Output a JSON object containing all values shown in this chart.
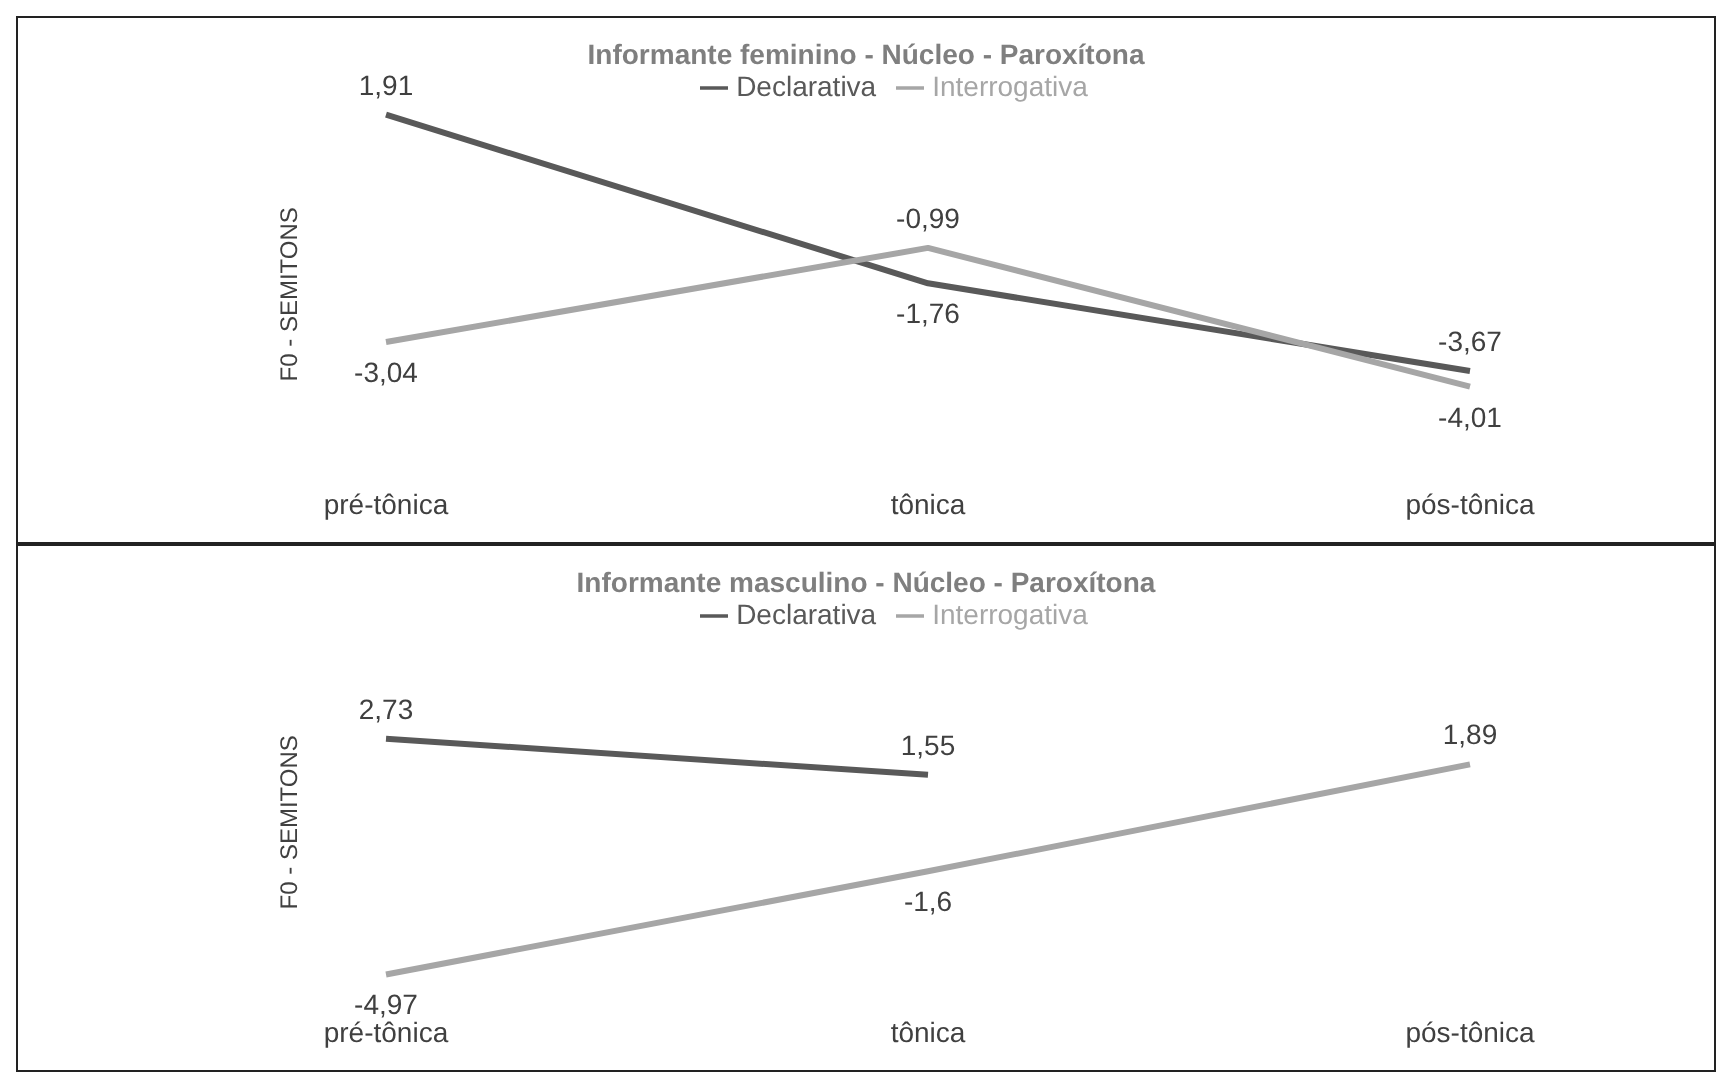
{
  "chart_data": [
    {
      "type": "line",
      "title": "Informante  feminino  - Núcleo - Paroxítona",
      "ylabel": "F0 - SEMITONS",
      "categories": [
        "pré-tônica",
        "tônica",
        "pós-tônica"
      ],
      "series": [
        {
          "name": "Declarativa",
          "color": "#595959",
          "values": [
            1.91,
            -1.76,
            -3.67
          ],
          "value_labels": [
            "1,91",
            "-1,76",
            "-3,67"
          ]
        },
        {
          "name": "Interrogativa",
          "color": "#a6a6a6",
          "values": [
            -3.04,
            -0.99,
            -4.01
          ],
          "value_labels": [
            "-3,04",
            "-0,99",
            "-4,01"
          ]
        }
      ],
      "legend": "top",
      "marker": "none",
      "line_style": "solid"
    },
    {
      "type": "line",
      "title": "Informante  masculino  - Núcleo - Paroxítona",
      "ylabel": "F0 - SEMITONS",
      "categories": [
        "pré-tônica",
        "tônica",
        "pós-tônica"
      ],
      "series": [
        {
          "name": "Declarativa",
          "color": "#595959",
          "values": [
            2.73,
            1.55,
            null
          ],
          "value_labels": [
            "2,73",
            "1,55",
            null
          ]
        },
        {
          "name": "Interrogativa",
          "color": "#a6a6a6",
          "values": [
            -4.97,
            -1.6,
            1.89
          ],
          "value_labels": [
            "-4,97",
            "-1,6",
            "1,89"
          ]
        }
      ],
      "legend": "top",
      "marker": "none",
      "line_style": "solid"
    }
  ]
}
